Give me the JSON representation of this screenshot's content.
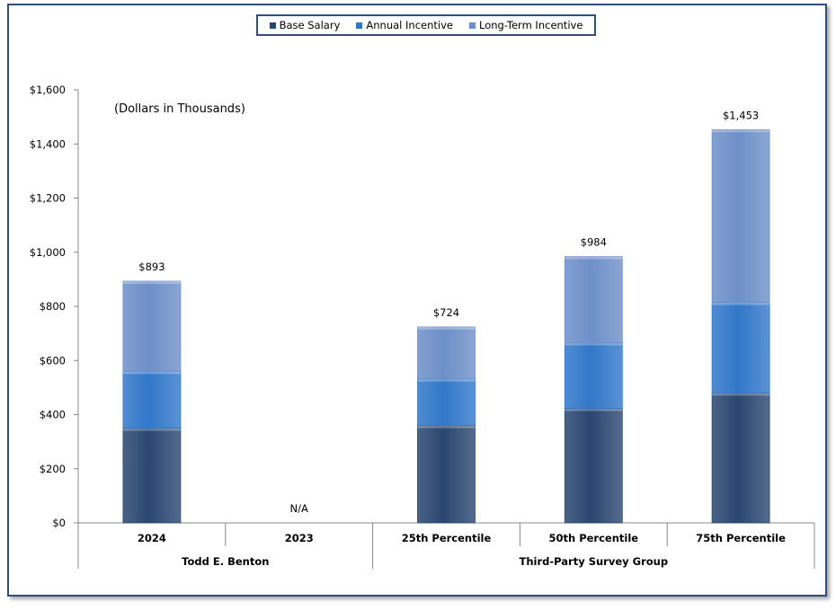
{
  "chart_data": {
    "type": "bar",
    "stacked": true,
    "annotation": "(Dollars in Thousands)",
    "legend": {
      "placement": "top-center",
      "entries": [
        "Base Salary",
        "Annual Incentive",
        "Long-Term Incentive"
      ]
    },
    "colors": [
      "#2a4670",
      "#3277c9",
      "#6d8fc8"
    ],
    "y_axis": {
      "min": 0,
      "max": 1600,
      "step": 200,
      "tick_labels": [
        "$0",
        "$200",
        "$400",
        "$600",
        "$800",
        "$1,000",
        "$1,200",
        "$1,400",
        "$1,600"
      ]
    },
    "categories": [
      "2024",
      "2023",
      "25th Percentile",
      "50th Percentile",
      "75th Percentile"
    ],
    "groups": [
      {
        "label": "Todd E. Benton",
        "categories": [
          0,
          1
        ]
      },
      {
        "label": "Third-Party Survey Group",
        "categories": [
          2,
          3,
          4
        ]
      }
    ],
    "series": [
      {
        "name": "Base Salary",
        "values": [
          350,
          null,
          360,
          423,
          480
        ]
      },
      {
        "name": "Annual Incentive",
        "values": [
          210,
          null,
          172,
          243,
          335
        ]
      },
      {
        "name": "Long-Term Incentive",
        "values": [
          333,
          null,
          192,
          318,
          638
        ]
      }
    ],
    "totals": [
      893,
      null,
      724,
      984,
      1453
    ],
    "total_labels": [
      "$893",
      "N/A",
      "$724",
      "$984",
      "$1,453"
    ]
  }
}
